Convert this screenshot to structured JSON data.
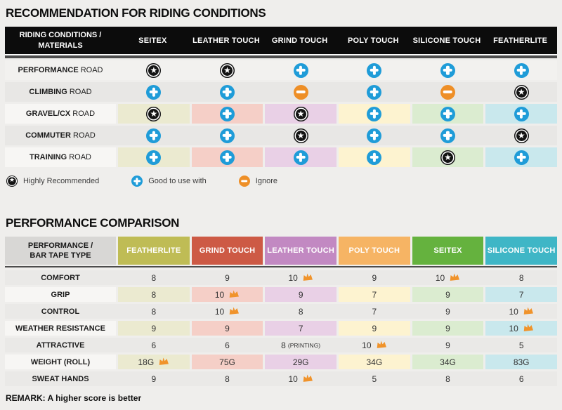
{
  "icon_glyphs": {
    "star": "★",
    "plus": "+",
    "minus": "−"
  },
  "colors": {
    "page_bg": "#efeeec",
    "header_bg": "#0c0c0c",
    "plus": "#1f9cd8",
    "minus": "#ee8f27",
    "star_bg": "#131313",
    "crown": "#f0932b",
    "divider": "#4d4d4d"
  },
  "tints": [
    "#ebead0",
    "#f5cfc7",
    "#e9d0e6",
    "#fdf3d0",
    "#dbecd0",
    "#c9e8ed"
  ],
  "riding_table": {
    "title": "RECOMMENDATION FOR RIDING CONDITIONS",
    "header": {
      "line1": "RIDING CONDITIONS /",
      "line2": "MATERIALS",
      "columns": [
        "SEITEX",
        "LEATHER TOUCH",
        "GRIND TOUCH",
        "POLY TOUCH",
        "SILICONE TOUCH",
        "FEATHERLITE"
      ]
    },
    "row_light": "#f2f1ef",
    "row_dark": "#e8e7e5",
    "label_tint": "#f7f6f4",
    "rows": [
      {
        "label_strong": "PERFORMANCE",
        "label_rest": "ROAD",
        "tinted": false,
        "cells": [
          "star",
          "star",
          "plus",
          "plus",
          "plus",
          "plus"
        ]
      },
      {
        "label_strong": "CLIMBING",
        "label_rest": "ROAD",
        "tinted": false,
        "cells": [
          "plus",
          "plus",
          "minus",
          "plus",
          "minus",
          "star"
        ]
      },
      {
        "label_strong": "GRAVEL/CX",
        "label_rest": "ROAD",
        "tinted": true,
        "cells": [
          "star",
          "plus",
          "star",
          "plus",
          "plus",
          "plus"
        ]
      },
      {
        "label_strong": "COMMUTER",
        "label_rest": "ROAD",
        "tinted": false,
        "cells": [
          "plus",
          "plus",
          "star",
          "plus",
          "plus",
          "star"
        ]
      },
      {
        "label_strong": "TRAINING",
        "label_rest": "ROAD",
        "tinted": true,
        "cells": [
          "plus",
          "plus",
          "plus",
          "plus",
          "star",
          "plus"
        ]
      }
    ]
  },
  "legend": [
    {
      "icon": "star",
      "label": "Highly Recommended"
    },
    {
      "icon": "plus",
      "label": "Good to use with"
    },
    {
      "icon": "minus",
      "label": "Ignore"
    }
  ],
  "performance_table": {
    "title": "PERFORMANCE COMPARISON",
    "header": {
      "line1": "PERFORMANCE /",
      "line2": "BAR TAPE TYPE",
      "columns": [
        {
          "name": "FEATHERLITE",
          "color": "#bfbc55"
        },
        {
          "name": "GRIND TOUCH",
          "color": "#cd5a45"
        },
        {
          "name": "LEATHER TOUCH",
          "color": "#c289c2"
        },
        {
          "name": "POLY TOUCH",
          "color": "#f6b464"
        },
        {
          "name": "SEITEX",
          "color": "#65b23e"
        },
        {
          "name": "SILICONE TOUCH",
          "color": "#3fb6c6"
        }
      ]
    },
    "row_bg": "#eae9e7",
    "label_tint": "#f7f6f4",
    "rows": [
      {
        "label": "COMFORT",
        "tinted": false,
        "cells": [
          {
            "v": "8"
          },
          {
            "v": "9"
          },
          {
            "v": "10",
            "crown": true
          },
          {
            "v": "9"
          },
          {
            "v": "10",
            "crown": true
          },
          {
            "v": "8"
          }
        ]
      },
      {
        "label": "GRIP",
        "tinted": true,
        "cells": [
          {
            "v": "8"
          },
          {
            "v": "10",
            "crown": true
          },
          {
            "v": "9"
          },
          {
            "v": "7"
          },
          {
            "v": "9"
          },
          {
            "v": "7"
          }
        ]
      },
      {
        "label": "CONTROL",
        "tinted": false,
        "cells": [
          {
            "v": "8"
          },
          {
            "v": "10",
            "crown": true
          },
          {
            "v": "8"
          },
          {
            "v": "7"
          },
          {
            "v": "9"
          },
          {
            "v": "10",
            "crown": true
          }
        ]
      },
      {
        "label": "WEATHER RESISTANCE",
        "tinted": true,
        "cells": [
          {
            "v": "9"
          },
          {
            "v": "9"
          },
          {
            "v": "7"
          },
          {
            "v": "9"
          },
          {
            "v": "9"
          },
          {
            "v": "10",
            "crown": true
          }
        ]
      },
      {
        "label": "ATTRACTIVE",
        "tinted": false,
        "cells": [
          {
            "v": "6"
          },
          {
            "v": "6"
          },
          {
            "v": "8",
            "note": "(PRINTING)"
          },
          {
            "v": "10",
            "crown": true
          },
          {
            "v": "9"
          },
          {
            "v": "5"
          }
        ]
      },
      {
        "label": "WEIGHT (ROLL)",
        "tinted": true,
        "cells": [
          {
            "v": "18G",
            "crown": true
          },
          {
            "v": "75G"
          },
          {
            "v": "29G"
          },
          {
            "v": "34G"
          },
          {
            "v": "34G"
          },
          {
            "v": "83G"
          }
        ]
      },
      {
        "label": "SWEAT HANDS",
        "tinted": false,
        "cells": [
          {
            "v": "9"
          },
          {
            "v": "8"
          },
          {
            "v": "10",
            "crown": true
          },
          {
            "v": "5"
          },
          {
            "v": "8"
          },
          {
            "v": "6"
          }
        ]
      }
    ]
  },
  "remark": "REMARK: A higher score is better",
  "chart_data": [
    {
      "type": "table",
      "title": "RECOMMENDATION FOR RIDING CONDITIONS",
      "columns": [
        "RIDING CONDITIONS / MATERIALS",
        "SEITEX",
        "LEATHER TOUCH",
        "GRIND TOUCH",
        "POLY TOUCH",
        "SILICONE TOUCH",
        "FEATHERLITE"
      ],
      "legend": {
        "star": "Highly Recommended",
        "plus": "Good to use with",
        "minus": "Ignore"
      },
      "rows": [
        [
          "PERFORMANCE ROAD",
          "star",
          "star",
          "plus",
          "plus",
          "plus",
          "plus"
        ],
        [
          "CLIMBING ROAD",
          "plus",
          "plus",
          "minus",
          "plus",
          "minus",
          "star"
        ],
        [
          "GRAVEL/CX ROAD",
          "star",
          "plus",
          "star",
          "plus",
          "plus",
          "plus"
        ],
        [
          "COMMUTER ROAD",
          "plus",
          "plus",
          "star",
          "plus",
          "plus",
          "star"
        ],
        [
          "TRAINING ROAD",
          "plus",
          "plus",
          "plus",
          "plus",
          "star",
          "plus"
        ]
      ]
    },
    {
      "type": "table",
      "title": "PERFORMANCE COMPARISON",
      "columns": [
        "PERFORMANCE / BAR TAPE TYPE",
        "FEATHERLITE",
        "GRIND TOUCH",
        "LEATHER TOUCH",
        "POLY TOUCH",
        "SEITEX",
        "SILICONE TOUCH"
      ],
      "note": "crown marks best score in row; REMARK: A higher score is better",
      "rows": [
        [
          "COMFORT",
          "8",
          "9",
          "10 crown",
          "9",
          "10 crown",
          "8"
        ],
        [
          "GRIP",
          "8",
          "10 crown",
          "9",
          "7",
          "9",
          "7"
        ],
        [
          "CONTROL",
          "8",
          "10 crown",
          "8",
          "7",
          "9",
          "10 crown"
        ],
        [
          "WEATHER RESISTANCE",
          "9",
          "9",
          "7",
          "9",
          "9",
          "10 crown"
        ],
        [
          "ATTRACTIVE",
          "6",
          "6",
          "8 (PRINTING)",
          "10 crown",
          "9",
          "5"
        ],
        [
          "WEIGHT (ROLL)",
          "18G crown",
          "75G",
          "29G",
          "34G",
          "34G",
          "83G"
        ],
        [
          "SWEAT HANDS",
          "9",
          "8",
          "10 crown",
          "5",
          "8",
          "6"
        ]
      ]
    }
  ]
}
